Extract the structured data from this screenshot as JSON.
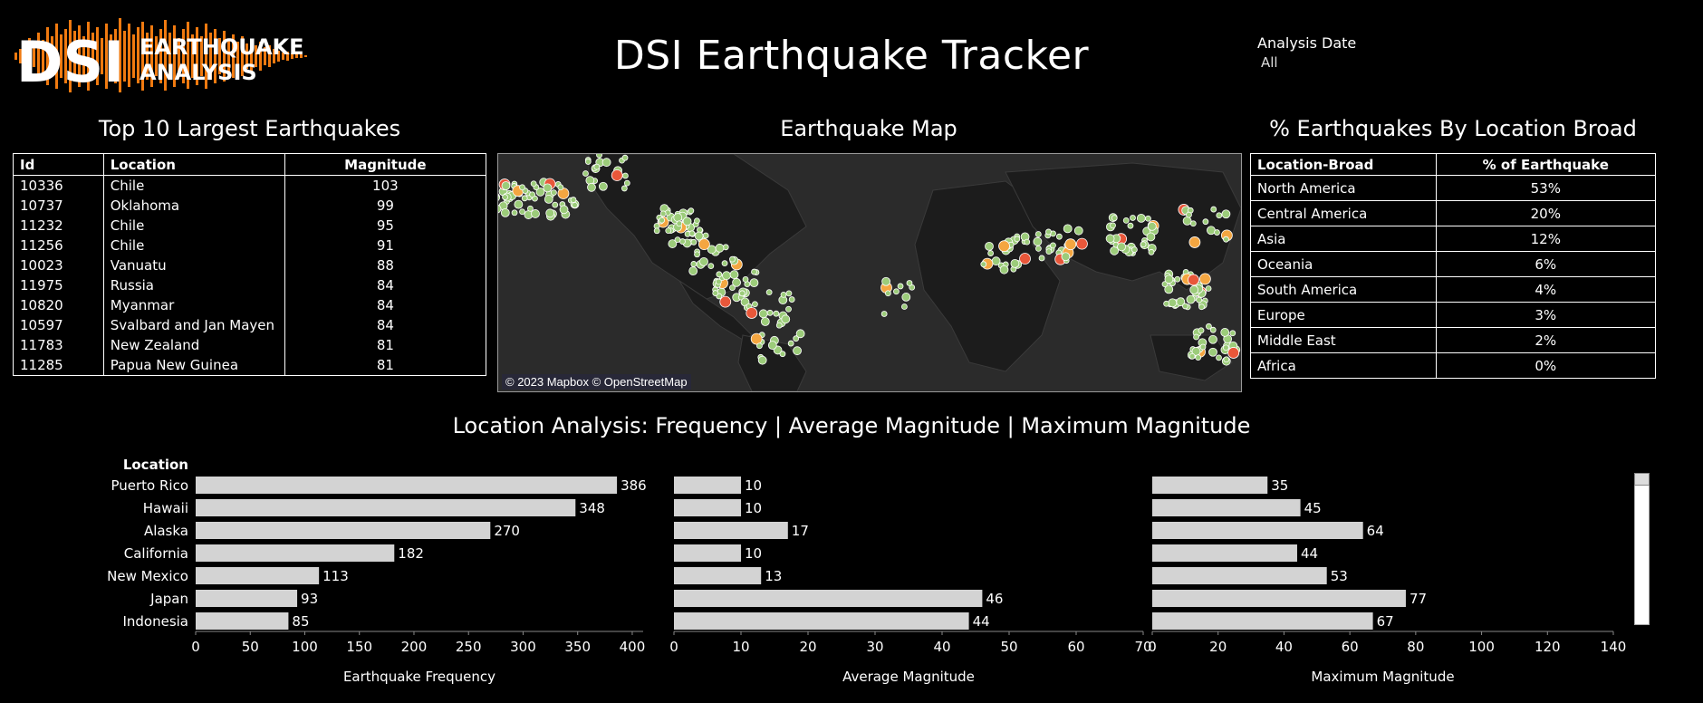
{
  "header": {
    "logo_big": "DSI",
    "logo_line1": "EARTHQUAKE",
    "logo_line2": "ANALYSIS",
    "title": "DSI Earthquake Tracker",
    "filter_label": "Analysis Date",
    "filter_value": "All"
  },
  "top10": {
    "title": "Top 10 Largest Earthquakes",
    "columns": [
      "Id",
      "Location",
      "Magnitude"
    ],
    "rows": [
      {
        "id": "10336",
        "location": "Chile",
        "magnitude": "103"
      },
      {
        "id": "10737",
        "location": "Oklahoma",
        "magnitude": "99"
      },
      {
        "id": "11232",
        "location": "Chile",
        "magnitude": "95"
      },
      {
        "id": "11256",
        "location": "Chile",
        "magnitude": "91"
      },
      {
        "id": "10023",
        "location": "Vanuatu",
        "magnitude": "88"
      },
      {
        "id": "11975",
        "location": "Russia",
        "magnitude": "84"
      },
      {
        "id": "10820",
        "location": "Myanmar",
        "magnitude": "84"
      },
      {
        "id": "10597",
        "location": "Svalbard and Jan Mayen",
        "magnitude": "84"
      },
      {
        "id": "11783",
        "location": "New Zealand",
        "magnitude": "81"
      },
      {
        "id": "11285",
        "location": "Papua New Guinea",
        "magnitude": "81"
      }
    ]
  },
  "map": {
    "title": "Earthquake Map",
    "attribution": "© 2023 Mapbox © OpenStreetMap",
    "colors": {
      "land": "#1c1c1c",
      "water": "#2b2b2b",
      "low": "#9ccc7a",
      "high": "#f4a641",
      "max": "#e8573a"
    }
  },
  "location_broad": {
    "title": "% Earthquakes By Location Broad",
    "columns": [
      "Location-Broad",
      "% of Earthquake"
    ],
    "rows": [
      {
        "name": "North America",
        "pct": "53%"
      },
      {
        "name": "Central America",
        "pct": "20%"
      },
      {
        "name": "Asia",
        "pct": "12%"
      },
      {
        "name": "Oceania",
        "pct": "6%"
      },
      {
        "name": "South America",
        "pct": "4%"
      },
      {
        "name": "Europe",
        "pct": "3%"
      },
      {
        "name": "Middle East",
        "pct": "2%"
      },
      {
        "name": "Africa",
        "pct": "0%"
      }
    ]
  },
  "section_title": "Location Analysis: Frequency | Average Magnitude | Maximum Magnitude",
  "chart_data": {
    "type": "bar",
    "orientation": "horizontal",
    "row_header": "Location",
    "categories": [
      "Puerto Rico",
      "Hawaii",
      "Alaska",
      "California",
      "New Mexico",
      "Japan",
      "Indonesia"
    ],
    "bar_color": "#d3d3d3",
    "panels": [
      {
        "xlabel": "Earthquake Frequency",
        "values": [
          386,
          348,
          270,
          182,
          113,
          93,
          85
        ],
        "xlim": [
          0,
          410
        ],
        "ticks": [
          0,
          50,
          100,
          150,
          200,
          250,
          300,
          350,
          400
        ]
      },
      {
        "xlabel": "Average Magnitude",
        "values": [
          10,
          10,
          17,
          10,
          13,
          46,
          44
        ],
        "xlim": [
          0,
          70
        ],
        "ticks": [
          0,
          10,
          20,
          30,
          40,
          50,
          60,
          70
        ]
      },
      {
        "xlabel": "Maximum Magnitude",
        "values": [
          35,
          45,
          64,
          44,
          53,
          77,
          67
        ],
        "xlim": [
          0,
          140
        ],
        "ticks": [
          0,
          20,
          40,
          60,
          80,
          100,
          120,
          140
        ]
      }
    ]
  }
}
